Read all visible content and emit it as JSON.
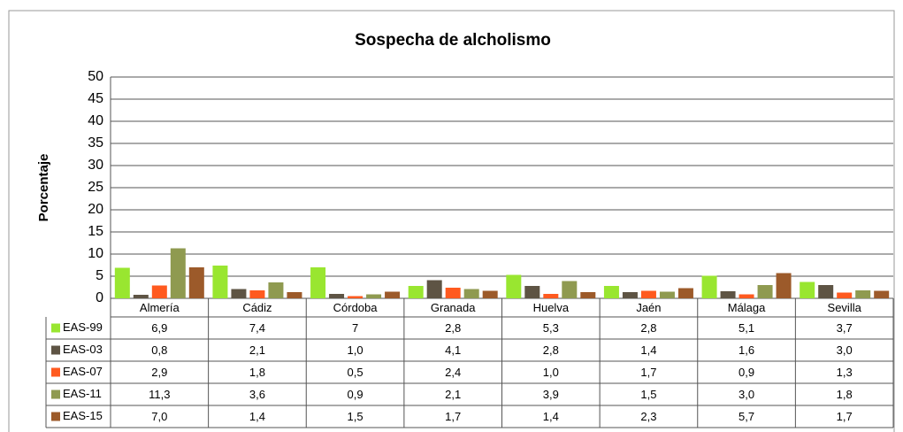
{
  "chart_data": {
    "type": "bar",
    "title": "Sospecha de alcholismo",
    "y_label": "Porcentaje",
    "categories": [
      "Almería",
      "Cádiz",
      "Córdoba",
      "Granada",
      "Huelva",
      "Jaén",
      "Málaga",
      "Sevilla"
    ],
    "series": [
      {
        "name": "EAS-99",
        "color": "#99e630",
        "values": [
          6.9,
          7.4,
          7,
          2.8,
          5.3,
          2.8,
          5.1,
          3.7
        ],
        "value_labels": [
          "6,9",
          "7,4",
          "7",
          "2,8",
          "5,3",
          "2,8",
          "5,1",
          "3,7"
        ]
      },
      {
        "name": "EAS-03",
        "color": "#5e5444",
        "values": [
          0.8,
          2.1,
          1.0,
          4.1,
          2.8,
          1.4,
          1.6,
          3.0
        ],
        "value_labels": [
          "0,8",
          "2,1",
          "1,0",
          "4,1",
          "2,8",
          "1,4",
          "1,6",
          "3,0"
        ]
      },
      {
        "name": "EAS-07",
        "color": "#ff5a1f",
        "values": [
          2.9,
          1.8,
          0.5,
          2.4,
          1.0,
          1.7,
          0.9,
          1.3
        ],
        "value_labels": [
          "2,9",
          "1,8",
          "0,5",
          "2,4",
          "1,0",
          "1,7",
          "0,9",
          "1,3"
        ]
      },
      {
        "name": "EAS-11",
        "color": "#8f9a50",
        "values": [
          11.3,
          3.6,
          0.9,
          2.1,
          3.9,
          1.5,
          3.0,
          1.8
        ],
        "value_labels": [
          "11,3",
          "3,6",
          "0,9",
          "2,1",
          "3,9",
          "1,5",
          "3,0",
          "1,8"
        ]
      },
      {
        "name": "EAS-15",
        "color": "#9c5a2a",
        "values": [
          7.0,
          1.4,
          1.5,
          1.7,
          1.4,
          2.3,
          5.7,
          1.7
        ],
        "value_labels": [
          "7,0",
          "1,4",
          "1,5",
          "1,7",
          "1,4",
          "2,3",
          "5,7",
          "1,7"
        ]
      }
    ],
    "ylim": [
      0,
      50
    ],
    "yticks": [
      0,
      5,
      10,
      15,
      20,
      25,
      30,
      35,
      40,
      45,
      50
    ],
    "grid": true
  }
}
